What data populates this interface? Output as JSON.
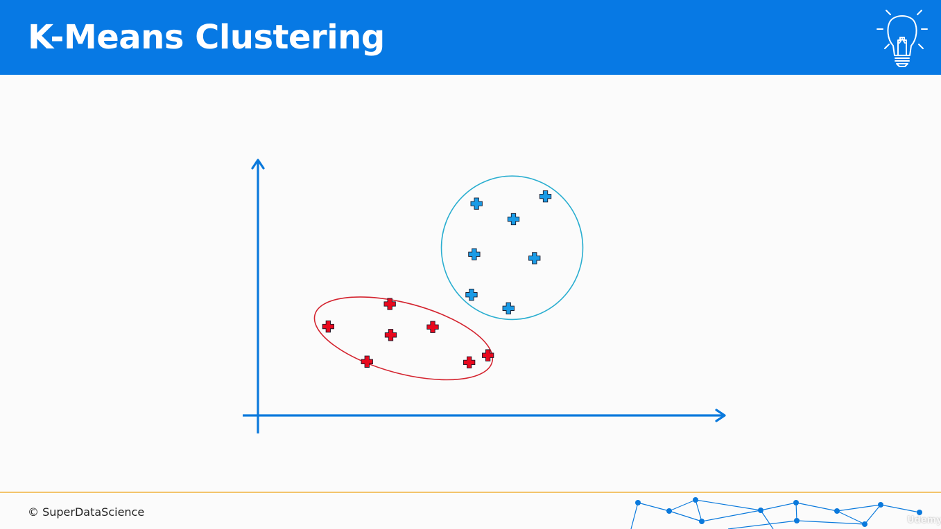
{
  "slide": {
    "title": "K-Means Clustering",
    "footer_text": "© SuperDataScience",
    "watermark": "Udemy"
  },
  "colors": {
    "header_bg": "#0779e4",
    "axis": "#0a79dc",
    "cluster_red": "#e8091e",
    "cluster_blue": "#1a9be6",
    "blue_outline": "#2aaed0",
    "red_outline": "#d4242f",
    "footer_line": "#f3c46b",
    "network": "#0a79dc"
  },
  "icons": {
    "header_icon": "lightbulb-icon",
    "point_marker": "plus-icon"
  },
  "chart_data": {
    "type": "scatter",
    "title": "",
    "xlabel": "",
    "ylabel": "",
    "xlim": [
      0,
      100
    ],
    "ylim": [
      0,
      100
    ],
    "grid": false,
    "legend": "none",
    "series": [
      {
        "color": "#e8091e",
        "points": [
          {
            "x": 15.4,
            "y": 36.7
          },
          {
            "x": 28.9,
            "y": 46.0
          },
          {
            "x": 29.1,
            "y": 33.2
          },
          {
            "x": 38.3,
            "y": 36.5
          },
          {
            "x": 23.9,
            "y": 22.2
          },
          {
            "x": 46.3,
            "y": 21.9
          },
          {
            "x": 50.4,
            "y": 24.8
          }
        ]
      },
      {
        "color": "#1a9be6",
        "points": [
          {
            "x": 47.9,
            "y": 87.4
          },
          {
            "x": 63.0,
            "y": 90.4
          },
          {
            "x": 56.0,
            "y": 81.0
          },
          {
            "x": 47.4,
            "y": 66.5
          },
          {
            "x": 60.6,
            "y": 64.9
          },
          {
            "x": 46.8,
            "y": 49.8
          },
          {
            "x": 54.9,
            "y": 44.2
          }
        ]
      }
    ],
    "clusters": [
      {
        "cx": 31.9,
        "cy": 31.8,
        "rx": 20.1,
        "ry": 14.5,
        "rotate": 15,
        "color": "#d4242f"
      },
      {
        "cx": 55.7,
        "cy": 69.2,
        "rx": 15.5,
        "ry": 29.6,
        "rotate": 0,
        "color": "#2aaed0"
      }
    ]
  }
}
